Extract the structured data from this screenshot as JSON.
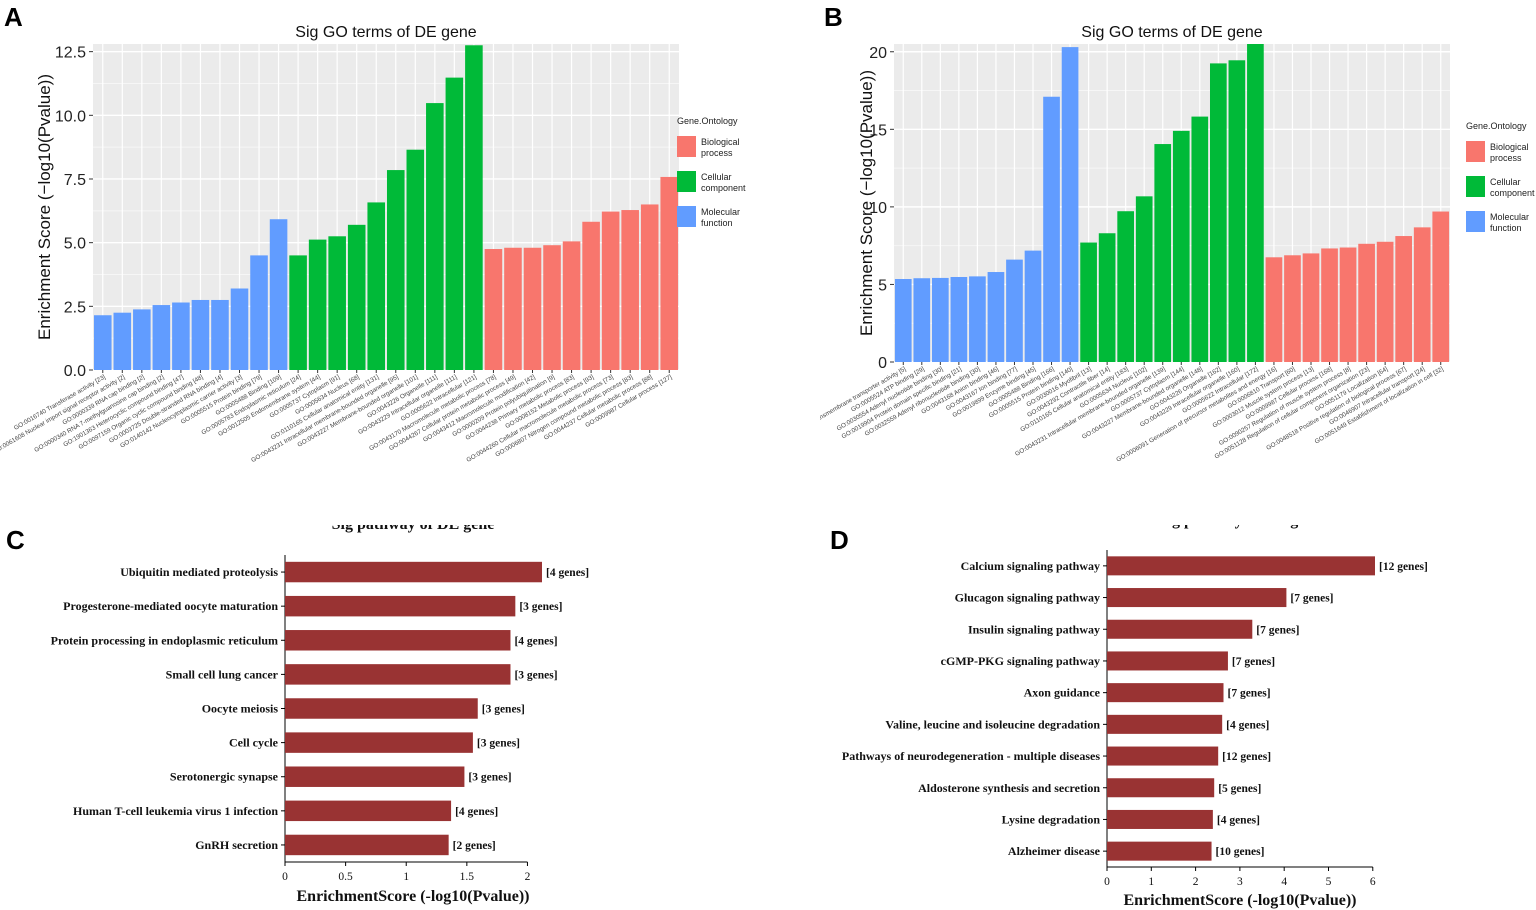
{
  "chart_data": [
    {
      "panel": "A",
      "type": "bar",
      "title": "Sig GO terms of DE gene",
      "xlabel": "",
      "ylabel": "Enrichment Score (−log10(Pvalue))",
      "ylim": [
        0,
        12.8
      ],
      "yticks": [
        "0.0",
        "2.5",
        "5.0",
        "7.5",
        "10.0",
        "12.5"
      ],
      "ytick_values": [
        0,
        2.5,
        5.0,
        7.5,
        10.0,
        12.5
      ],
      "grid": true,
      "legend": {
        "title": "Gene.Ontology",
        "position": "right",
        "entries": [
          {
            "label_lines": [
              "Biological",
              "process"
            ],
            "color": "#f8766d"
          },
          {
            "label_lines": [
              "Cellular",
              "component"
            ],
            "color": "#00ba38"
          },
          {
            "label_lines": [
              "Molecular",
              "function"
            ],
            "color": "#619cff"
          }
        ]
      },
      "bars": [
        {
          "label": "GO:0016740 Transferase activity [23]",
          "value": 2.15,
          "group": "mf"
        },
        {
          "label": "GO:0061608 Nuclear import signal receptor activity [2]",
          "value": 2.25,
          "group": "mf"
        },
        {
          "label": "GO:0000339 RNA cap binding [2]",
          "value": 2.38,
          "group": "mf"
        },
        {
          "label": "GO:0000340 RNA 7-methylguanosine cap binding [2]",
          "value": 2.55,
          "group": "mf"
        },
        {
          "label": "GO:1901363 Heterocyclic compound binding [47]",
          "value": 2.65,
          "group": "mf"
        },
        {
          "label": "GO:0097159 Organic cyclic compound binding [48]",
          "value": 2.75,
          "group": "mf"
        },
        {
          "label": "GO:0003725 Double-stranded RNA binding [4]",
          "value": 2.75,
          "group": "mf"
        },
        {
          "label": "GO:0140142 Nucleocytoplasmic carrier activity [3]",
          "value": 3.2,
          "group": "mf"
        },
        {
          "label": "GO:0005515 Protein binding [79]",
          "value": 4.5,
          "group": "mf"
        },
        {
          "label": "GO:0005488 Binding [109]",
          "value": 5.92,
          "group": "mf"
        },
        {
          "label": "GO:0005783 Endoplasmic reticulum [24]",
          "value": 4.5,
          "group": "cc"
        },
        {
          "label": "GO:0012505 Endomembrane system [44]",
          "value": 5.12,
          "group": "cc"
        },
        {
          "label": "GO:0005737 Cytoplasm [91]",
          "value": 5.25,
          "group": "cc"
        },
        {
          "label": "GO:0005634 Nucleus [68]",
          "value": 5.7,
          "group": "cc"
        },
        {
          "label": "GO:0110165 Cellular anatomical entity [131]",
          "value": 6.58,
          "group": "cc"
        },
        {
          "label": "GO:0043231 Intracellular membrane-bounded organelle [95]",
          "value": 7.85,
          "group": "cc"
        },
        {
          "label": "GO:0043227 Membrane-bounded organelle [101]",
          "value": 8.65,
          "group": "cc"
        },
        {
          "label": "GO:0043226 Organelle [111]",
          "value": 10.48,
          "group": "cc"
        },
        {
          "label": "GO:0043229 Intracellular organelle [111]",
          "value": 11.48,
          "group": "cc"
        },
        {
          "label": "GO:0005622 Intracellular [121]",
          "value": 12.75,
          "group": "cc"
        },
        {
          "label": "GO:0043170 Macromolecule metabolic process [78]",
          "value": 4.75,
          "group": "bp"
        },
        {
          "label": "GO:0044267 Cellular protein metabolic process [49]",
          "value": 4.8,
          "group": "bp"
        },
        {
          "label": "GO:0043412 Macromolecule modification [42]",
          "value": 4.8,
          "group": "bp"
        },
        {
          "label": "GO:0000209 Protein polyubiquitination [9]",
          "value": 4.9,
          "group": "bp"
        },
        {
          "label": "GO:0044238 Primary metabolic process [83]",
          "value": 5.05,
          "group": "bp"
        },
        {
          "label": "GO:0008152 Metabolic process [93]",
          "value": 5.82,
          "group": "bp"
        },
        {
          "label": "GO:0044260 Cellular macromolecule metabolic process [73]",
          "value": 6.22,
          "group": "bp"
        },
        {
          "label": "GO:0006807 Nitrogen compound metabolic process [83]",
          "value": 6.28,
          "group": "bp"
        },
        {
          "label": "GO:0044237 Cellular metabolic process [88]",
          "value": 6.5,
          "group": "bp"
        },
        {
          "label": "GO:0009987 Cellular process [127]",
          "value": 7.58,
          "group": "bp"
        }
      ]
    },
    {
      "panel": "B",
      "type": "bar",
      "title": "Sig GO terms of DE gene",
      "xlabel": "",
      "ylabel": "Enrichment Score (−log10(Pvalue))",
      "ylim": [
        0,
        20.5
      ],
      "yticks": [
        "0",
        "5",
        "10",
        "15",
        "20"
      ],
      "ytick_values": [
        0,
        5,
        10,
        15,
        20
      ],
      "grid": true,
      "legend": {
        "title": "Gene.Ontology",
        "position": "right",
        "entries": [
          {
            "label_lines": [
              "Biological",
              "process"
            ],
            "color": "#f8766d"
          },
          {
            "label_lines": [
              "Cellular",
              "component"
            ],
            "color": "#00ba38"
          },
          {
            "label_lines": [
              "Molecular",
              "function"
            ],
            "color": "#619cff"
          }
        ]
      },
      "bars": [
        {
          "label": "GO:0019829 ATPase-coupled cation transmembrane transporter activity [5]",
          "value": 5.35,
          "group": "mf"
        },
        {
          "label": "GO:0005524 ATP binding [29]",
          "value": 5.4,
          "group": "mf"
        },
        {
          "label": "GO:0030554 Adenyl nucleotide binding [30]",
          "value": 5.42,
          "group": "mf"
        },
        {
          "label": "GO:0019904 Protein domain specific binding [21]",
          "value": 5.48,
          "group": "mf"
        },
        {
          "label": "GO:0032559 Adenyl ribonucleotide binding [30]",
          "value": 5.52,
          "group": "mf"
        },
        {
          "label": "GO:0043168 Anion binding [46]",
          "value": 5.8,
          "group": "mf"
        },
        {
          "label": "GO:0043167 Ion binding [77]",
          "value": 6.6,
          "group": "mf"
        },
        {
          "label": "GO:0019899 Enzyme binding [45]",
          "value": 7.18,
          "group": "mf"
        },
        {
          "label": "GO:0005488 Binding [166]",
          "value": 17.1,
          "group": "mf"
        },
        {
          "label": "GO:0005515 Protein binding [140]",
          "value": 20.3,
          "group": "mf"
        },
        {
          "label": "GO:0030016 Myofibril [13]",
          "value": 7.7,
          "group": "cc"
        },
        {
          "label": "GO:0043292 Contractile fiber [14]",
          "value": 8.3,
          "group": "cc"
        },
        {
          "label": "GO:0110165 Cellular anatomical entity [183]",
          "value": 9.72,
          "group": "cc"
        },
        {
          "label": "GO:0005634 Nucleus [102]",
          "value": 10.68,
          "group": "cc"
        },
        {
          "label": "GO:0043231 Intracellular membrane-bounded organelle [139]",
          "value": 14.05,
          "group": "cc"
        },
        {
          "label": "GO:0005737 Cytoplasm [144]",
          "value": 14.9,
          "group": "cc"
        },
        {
          "label": "GO:0043227 Membrane-bounded organelle [148]",
          "value": 15.82,
          "group": "cc"
        },
        {
          "label": "GO:0043226 Organelle [162]",
          "value": 19.25,
          "group": "cc"
        },
        {
          "label": "GO:0043229 Intracellular organelle [160]",
          "value": 19.45,
          "group": "cc"
        },
        {
          "label": "GO:0005622 Intracellular [172]",
          "value": 20.5,
          "group": "cc"
        },
        {
          "label": "GO:0006091 Generation of precursor metabolites and energy [16]",
          "value": 6.75,
          "group": "bp"
        },
        {
          "label": "GO:0006810 Transport [60]",
          "value": 6.88,
          "group": "bp"
        },
        {
          "label": "GO:0003012 Muscle system process [13]",
          "value": 7.0,
          "group": "bp"
        },
        {
          "label": "GO:0009987 Cellular process [168]",
          "value": 7.32,
          "group": "bp"
        },
        {
          "label": "GO:0090257 Regulation of muscle system process [8]",
          "value": 7.38,
          "group": "bp"
        },
        {
          "label": "GO:0051128 Regulation of cellular component organization [23]",
          "value": 7.62,
          "group": "bp"
        },
        {
          "label": "GO:0051179 Localization [64]",
          "value": 7.75,
          "group": "bp"
        },
        {
          "label": "GO:0048518 Positive regulation of biological process [67]",
          "value": 8.12,
          "group": "bp"
        },
        {
          "label": "GO:0046907 Intracellular transport [24]",
          "value": 8.68,
          "group": "bp"
        },
        {
          "label": "GO:0051649 Establishment of localization in cell [32]",
          "value": 9.7,
          "group": "bp"
        }
      ]
    },
    {
      "panel": "C",
      "type": "bar",
      "orientation": "horizontal",
      "title": "Sig pathway of DE gene",
      "xlabel": "EnrichmentScore (-log10(Pvalue))",
      "ylabel": "",
      "xlim": [
        0,
        2.12
      ],
      "xticks": [
        "0",
        "0.5",
        "1",
        "1.5",
        "2"
      ],
      "xtick_values": [
        0,
        0.5,
        1,
        1.5,
        2
      ],
      "bar_color": "#993333",
      "categories": [
        "Ubiquitin mediated proteolysis",
        "Progesterone-mediated oocyte maturation",
        "Protein processing in endoplasmic reticulum",
        "Small cell lung cancer",
        "Oocyte meiosis",
        "Cell cycle",
        "Serotonergic synapse",
        "Human T-cell leukemia virus 1 infection",
        "GnRH secretion"
      ],
      "values": [
        2.12,
        1.9,
        1.86,
        1.86,
        1.59,
        1.55,
        1.48,
        1.37,
        1.35
      ],
      "annotations": [
        "[4 genes]",
        "[3 genes]",
        "[4 genes]",
        "[3 genes]",
        "[3 genes]",
        "[3 genes]",
        "[3 genes]",
        "[4 genes]",
        "[2 genes]"
      ]
    },
    {
      "panel": "D",
      "type": "bar",
      "orientation": "horizontal",
      "title": "Sig pathway of DE gene",
      "xlabel": "EnrichmentScore (-log10(Pvalue))",
      "ylabel": "",
      "xlim": [
        0,
        6.05
      ],
      "xticks": [
        "0",
        "1",
        "2",
        "3",
        "4",
        "5",
        "6"
      ],
      "xtick_values": [
        0,
        1,
        2,
        3,
        4,
        5,
        6
      ],
      "bar_color": "#993333",
      "categories": [
        "Calcium signaling pathway",
        "Glucagon signaling pathway",
        "Insulin signaling pathway",
        "cGMP-PKG signaling pathway",
        "Axon guidance",
        "Valine, leucine and isoleucine degradation",
        "Pathways of neurodegeneration - multiple diseases",
        "Aldosterone synthesis and secretion",
        "Lysine degradation",
        "Alzheimer disease"
      ],
      "values": [
        6.05,
        4.05,
        3.28,
        2.73,
        2.63,
        2.6,
        2.51,
        2.42,
        2.39,
        2.36
      ],
      "annotations": [
        "[12 genes]",
        "[7 genes]",
        "[7 genes]",
        "[7 genes]",
        "[7 genes]",
        "[4 genes]",
        "[12 genes]",
        "[5 genes]",
        "[4 genes]",
        "[10 genes]"
      ]
    }
  ],
  "panel_letters": [
    "A",
    "B",
    "C",
    "D"
  ]
}
